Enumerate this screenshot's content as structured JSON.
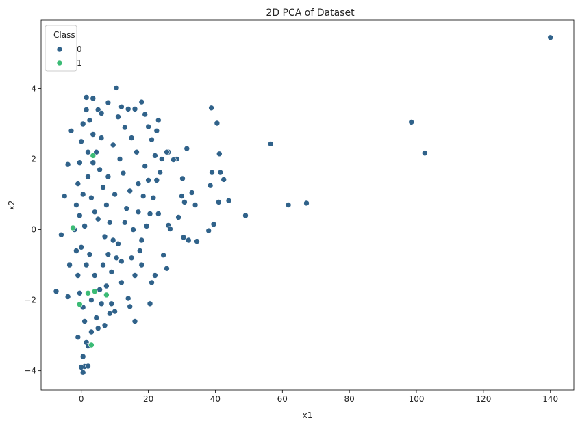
{
  "chart_data": {
    "type": "scatter",
    "title": "2D PCA of Dataset",
    "xlabel": "x1",
    "ylabel": "x2",
    "xlim": [
      -12,
      147
    ],
    "ylim": [
      -4.55,
      5.95
    ],
    "xticks": [
      0,
      20,
      40,
      60,
      80,
      100,
      120,
      140
    ],
    "yticks": [
      -4,
      -2,
      0,
      2,
      4
    ],
    "grid": false,
    "legend": {
      "title": "Class",
      "placement": "top-left",
      "entries": [
        "0",
        "1"
      ]
    },
    "series": [
      {
        "name": "0",
        "color": "#30628a",
        "points": [
          [
            140.0,
            5.45
          ],
          [
            98.5,
            3.05
          ],
          [
            102.5,
            2.17
          ],
          [
            56.5,
            2.43
          ],
          [
            61.8,
            0.7
          ],
          [
            67.2,
            0.75
          ],
          [
            10.5,
            4.02
          ],
          [
            18.0,
            3.62
          ],
          [
            38.8,
            3.45
          ],
          [
            40.5,
            3.02
          ],
          [
            41.2,
            2.15
          ],
          [
            31.5,
            2.3
          ],
          [
            39.0,
            1.62
          ],
          [
            41.5,
            1.62
          ],
          [
            42.5,
            1.42
          ],
          [
            38.5,
            1.25
          ],
          [
            41.0,
            0.78
          ],
          [
            44.0,
            0.82
          ],
          [
            49.0,
            0.4
          ],
          [
            39.5,
            0.15
          ],
          [
            38.0,
            -0.03
          ],
          [
            34.5,
            -0.33
          ],
          [
            32.0,
            -0.3
          ],
          [
            30.5,
            -0.22
          ],
          [
            29.0,
            0.35
          ],
          [
            30.2,
            1.45
          ],
          [
            30.0,
            0.95
          ],
          [
            30.8,
            0.78
          ],
          [
            33.0,
            1.05
          ],
          [
            34.0,
            0.7
          ],
          [
            28.5,
            2.0
          ],
          [
            27.5,
            1.98
          ],
          [
            26.0,
            2.2
          ],
          [
            25.5,
            2.2
          ],
          [
            24.0,
            2.0
          ],
          [
            23.5,
            1.62
          ],
          [
            22.5,
            1.4
          ],
          [
            23.0,
            0.45
          ],
          [
            26.0,
            0.12
          ],
          [
            26.5,
            0.02
          ],
          [
            24.5,
            -0.72
          ],
          [
            25.5,
            -1.1
          ],
          [
            20.5,
            -2.1
          ],
          [
            21.0,
            -1.5
          ],
          [
            22.0,
            -1.3
          ],
          [
            14.5,
            -2.18
          ],
          [
            14.0,
            -1.95
          ],
          [
            10.0,
            -2.32
          ],
          [
            9.0,
            -2.1
          ],
          [
            21.0,
            2.55
          ],
          [
            22.5,
            2.8
          ],
          [
            20.0,
            2.92
          ],
          [
            19.0,
            3.27
          ],
          [
            23.0,
            3.1
          ],
          [
            14.0,
            3.42
          ],
          [
            16.0,
            3.42
          ],
          [
            12.0,
            3.48
          ],
          [
            -4.0,
            1.85
          ],
          [
            -5.0,
            0.95
          ],
          [
            -6.0,
            -0.15
          ],
          [
            -7.5,
            -1.75
          ],
          [
            -4.0,
            -1.9
          ],
          [
            -3.5,
            -1.0
          ],
          [
            -3.0,
            2.8
          ],
          [
            1.5,
            3.75
          ],
          [
            3.5,
            3.72
          ],
          [
            5.0,
            3.4
          ],
          [
            0.5,
            -4.05
          ],
          [
            1.0,
            -3.88
          ],
          [
            2.0,
            -3.87
          ],
          [
            0.0,
            -3.9
          ],
          [
            0.5,
            -3.6
          ],
          [
            1.5,
            -3.2
          ],
          [
            -1.0,
            -3.05
          ],
          [
            5.0,
            -2.8
          ],
          [
            7.0,
            -2.72
          ],
          [
            8.5,
            -2.38
          ],
          [
            16.0,
            -2.6
          ],
          [
            12.0,
            -0.9
          ],
          [
            15.0,
            -0.8
          ],
          [
            17.5,
            -0.6
          ],
          [
            18.0,
            -0.3
          ],
          [
            19.5,
            0.1
          ],
          [
            20.5,
            0.45
          ],
          [
            18.5,
            0.95
          ],
          [
            17.0,
            1.3
          ],
          [
            19.0,
            1.8
          ],
          [
            16.5,
            2.2
          ],
          [
            15.0,
            2.6
          ],
          [
            13.0,
            2.9
          ],
          [
            11.0,
            3.2
          ],
          [
            8.0,
            3.6
          ],
          [
            6.0,
            3.3
          ],
          [
            9.5,
            2.4
          ],
          [
            12.5,
            1.6
          ],
          [
            14.5,
            1.1
          ],
          [
            13.0,
            0.2
          ],
          [
            11.0,
            -0.4
          ],
          [
            9.0,
            -1.2
          ],
          [
            7.5,
            -1.6
          ],
          [
            6.0,
            -2.1
          ],
          [
            4.5,
            -2.5
          ],
          [
            3.0,
            -2.9
          ],
          [
            2.0,
            -3.3
          ],
          [
            1.0,
            -2.6
          ],
          [
            0.5,
            -2.2
          ],
          [
            -0.5,
            -1.8
          ],
          [
            -1.0,
            -1.3
          ],
          [
            -1.5,
            -0.6
          ],
          [
            -2.0,
            0.0
          ],
          [
            -1.5,
            0.7
          ],
          [
            -1.0,
            1.3
          ],
          [
            -0.5,
            1.9
          ],
          [
            0.0,
            2.5
          ],
          [
            0.5,
            3.0
          ],
          [
            1.5,
            3.4
          ],
          [
            2.5,
            3.1
          ],
          [
            3.5,
            2.7
          ],
          [
            4.5,
            2.2
          ],
          [
            5.5,
            1.7
          ],
          [
            6.5,
            1.2
          ],
          [
            7.5,
            0.7
          ],
          [
            8.5,
            0.2
          ],
          [
            9.5,
            -0.3
          ],
          [
            10.5,
            -0.8
          ],
          [
            5.0,
            0.3
          ],
          [
            3.0,
            0.9
          ],
          [
            2.0,
            1.5
          ],
          [
            1.0,
            0.1
          ],
          [
            2.5,
            -0.7
          ],
          [
            4.0,
            -1.3
          ],
          [
            3.5,
            1.9
          ],
          [
            6.0,
            2.6
          ],
          [
            7.0,
            -0.2
          ],
          [
            8.0,
            1.5
          ],
          [
            10.0,
            1.0
          ],
          [
            11.5,
            2.0
          ],
          [
            12.0,
            -1.5
          ],
          [
            6.5,
            -1.0
          ],
          [
            4.0,
            0.5
          ],
          [
            1.5,
            -1.0
          ],
          [
            0.0,
            -0.5
          ],
          [
            -0.5,
            0.4
          ],
          [
            0.5,
            1.0
          ],
          [
            2.0,
            2.2
          ],
          [
            3.0,
            -2.0
          ],
          [
            5.5,
            -1.7
          ],
          [
            8.0,
            -0.7
          ],
          [
            13.5,
            0.6
          ],
          [
            15.5,
            0.0
          ],
          [
            16.0,
            -1.3
          ],
          [
            18.0,
            -1.0
          ],
          [
            17.0,
            0.5
          ],
          [
            21.5,
            0.9
          ],
          [
            20.0,
            1.4
          ],
          [
            22.0,
            2.1
          ]
        ]
      },
      {
        "name": "1",
        "color": "#3bbb75",
        "points": [
          [
            3.5,
            2.1
          ],
          [
            -2.5,
            0.05
          ],
          [
            2.0,
            -1.8
          ],
          [
            4.0,
            -1.75
          ],
          [
            7.5,
            -1.85
          ],
          [
            -0.5,
            -2.12
          ],
          [
            3.0,
            -3.27
          ]
        ]
      }
    ]
  }
}
